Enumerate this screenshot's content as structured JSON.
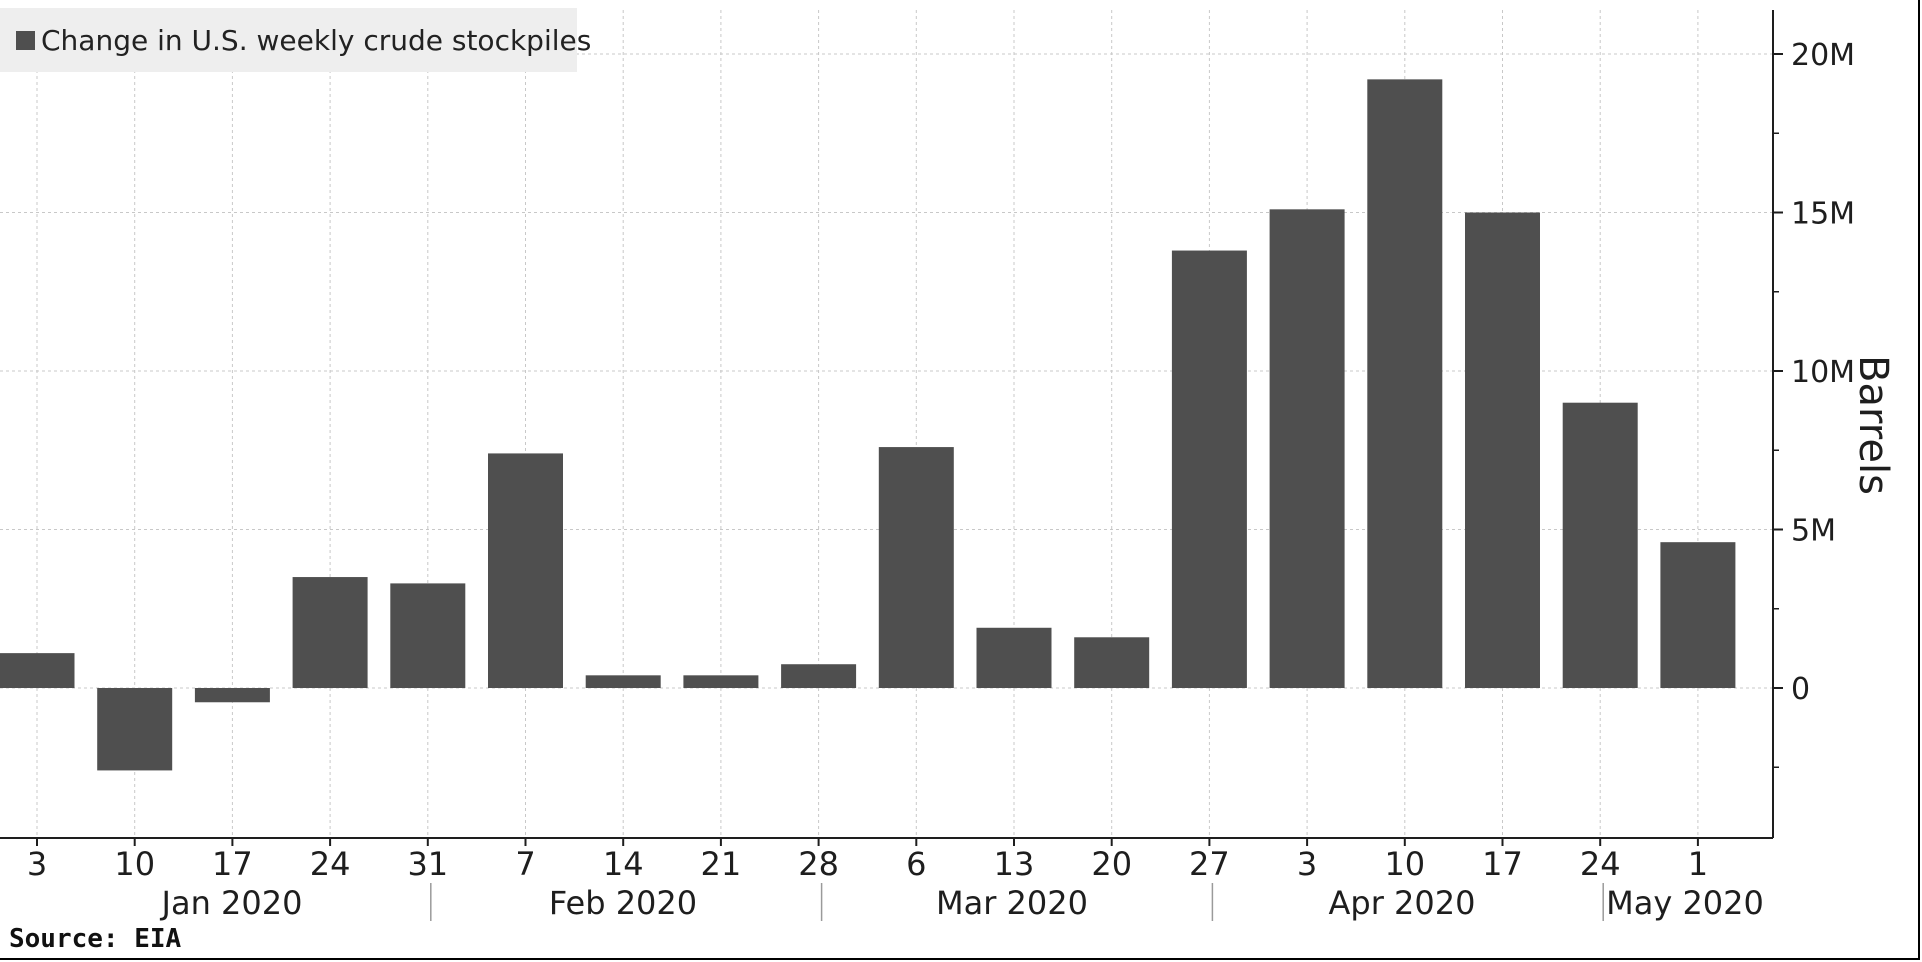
{
  "chart_data": {
    "type": "bar",
    "legend": "Change in U.S. weekly crude stockpiles",
    "legend_position": "top-left",
    "ylabel": "Barrels",
    "ylim": [
      -4800000,
      21500000
    ],
    "yticks": [
      {
        "value": 0,
        "label": "0"
      },
      {
        "value": 5000000,
        "label": "5M"
      },
      {
        "value": 10000000,
        "label": "10M"
      },
      {
        "value": 15000000,
        "label": "15M"
      },
      {
        "value": 20000000,
        "label": "20M"
      }
    ],
    "y_axis_side": "right",
    "grid": true,
    "categories": [
      "3",
      "10",
      "17",
      "24",
      "31",
      "7",
      "14",
      "21",
      "28",
      "6",
      "13",
      "20",
      "27",
      "3",
      "10",
      "17",
      "24",
      "1"
    ],
    "values": [
      1100000,
      -2600000,
      -450000,
      3500000,
      3300000,
      7400000,
      400000,
      400000,
      750000,
      7600000,
      1900000,
      1600000,
      13800000,
      15100000,
      19200000,
      15000000,
      9000000,
      4600000
    ],
    "months": [
      "Jan 2020",
      "Feb 2020",
      "Mar 2020",
      "Apr 2020",
      "May 2020"
    ],
    "bar_color": "#4f4f4f",
    "source": "Source: EIA"
  }
}
